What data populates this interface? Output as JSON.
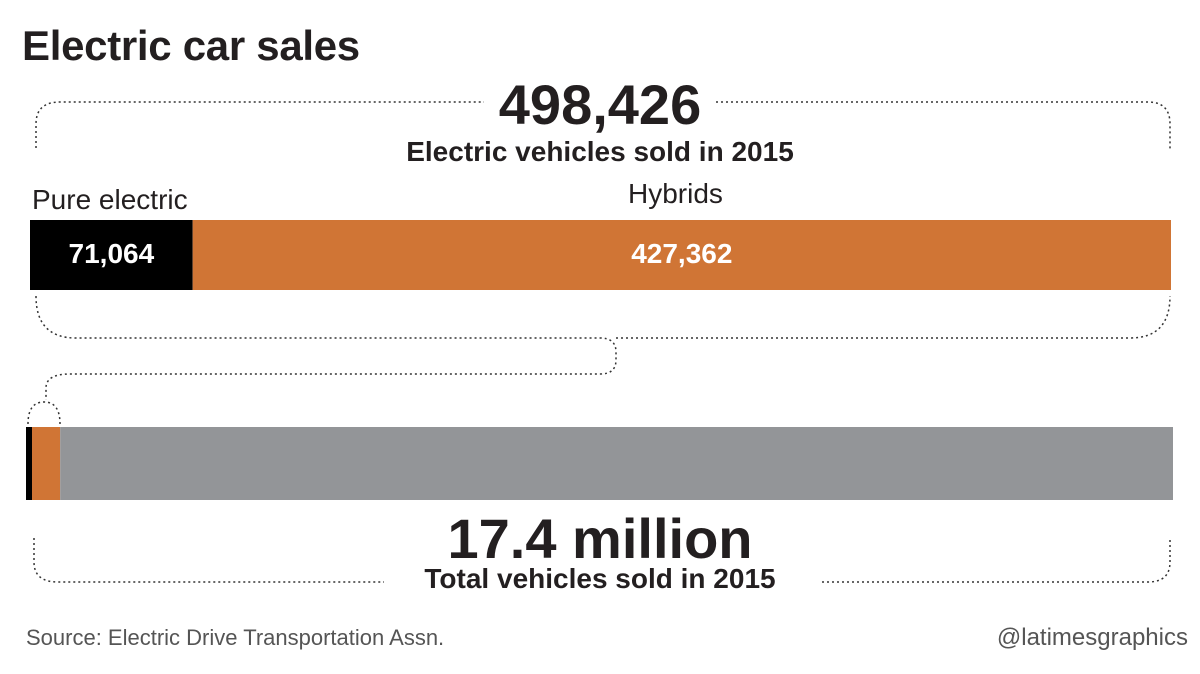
{
  "title": "Electric car sales",
  "source": "Source: Electric Drive Transportation Assn.",
  "credit": "@latimesgraphics",
  "colors": {
    "pure_electric": "#000000",
    "hybrids": "#d07535",
    "other": "#939598"
  },
  "chart_data": [
    {
      "type": "bar",
      "orientation": "horizontal-stacked",
      "total_value": "498,426",
      "total_label": "Electric vehicles sold in 2015",
      "series": [
        {
          "name": "Pure electric",
          "value": 71064,
          "value_label": "71,064"
        },
        {
          "name": "Hybrids",
          "value": 427362,
          "value_label": "427,362"
        }
      ]
    },
    {
      "type": "bar",
      "orientation": "horizontal-stacked",
      "total_value": "17.4 million",
      "total_label": "Total vehicles sold in 2015",
      "total_numeric": 17400000,
      "series": [
        {
          "value": 71064
        },
        {
          "value": 427362
        },
        {
          "value": 16901574
        }
      ]
    }
  ]
}
